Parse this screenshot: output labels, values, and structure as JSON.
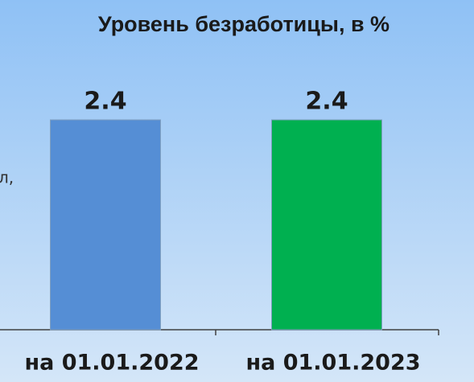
{
  "chart_data": {
    "type": "bar",
    "title": "Уровень безработицы, в  %",
    "annotation": "л,",
    "categories": [
      "на 01.01.2022",
      "на 01.01.2023"
    ],
    "values": [
      2.4,
      2.4
    ],
    "colors": [
      "#558ed5",
      "#00b050"
    ]
  }
}
